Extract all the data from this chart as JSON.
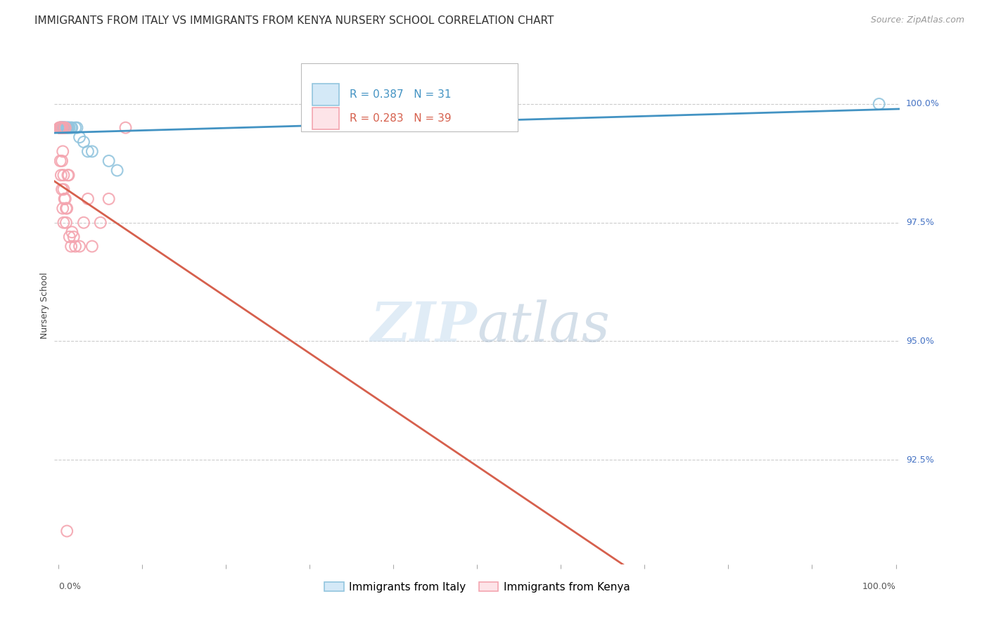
{
  "title": "IMMIGRANTS FROM ITALY VS IMMIGRANTS FROM KENYA NURSERY SCHOOL CORRELATION CHART",
  "source": "Source: ZipAtlas.com",
  "ylabel": "Nursery School",
  "legend_italy": "Immigrants from Italy",
  "legend_kenya": "Immigrants from Kenya",
  "italy_R": 0.387,
  "italy_N": 31,
  "kenya_R": 0.283,
  "kenya_N": 39,
  "italy_color": "#92c5de",
  "kenya_color": "#f4a5b0",
  "italy_line_color": "#4393c3",
  "kenya_line_color": "#d6604d",
  "ytick_labels": [
    "92.5%",
    "95.0%",
    "97.5%",
    "100.0%"
  ],
  "ytick_values": [
    92.5,
    95.0,
    97.5,
    100.0
  ],
  "ymin": 90.3,
  "ymax": 101.2,
  "xmin": -0.5,
  "xmax": 100.5,
  "background": "#ffffff",
  "grid_color": "#cccccc",
  "italy_x": [
    0.2,
    0.3,
    0.3,
    0.3,
    0.4,
    0.4,
    0.4,
    0.5,
    0.5,
    0.6,
    0.6,
    0.7,
    0.7,
    0.8,
    0.8,
    1.0,
    1.0,
    1.1,
    1.2,
    1.3,
    1.5,
    1.6,
    2.0,
    2.2,
    2.5,
    3.0,
    3.5,
    4.0,
    6.0,
    7.0,
    98.0
  ],
  "italy_y": [
    99.5,
    99.5,
    99.5,
    99.5,
    99.5,
    99.5,
    99.5,
    99.5,
    99.5,
    99.5,
    99.5,
    99.5,
    99.5,
    99.5,
    99.5,
    99.5,
    99.5,
    99.5,
    99.5,
    99.5,
    99.5,
    99.5,
    99.5,
    99.5,
    99.3,
    99.2,
    99.0,
    99.0,
    98.8,
    98.6,
    100.0
  ],
  "kenya_x": [
    0.1,
    0.1,
    0.2,
    0.2,
    0.2,
    0.3,
    0.3,
    0.3,
    0.4,
    0.4,
    0.4,
    0.5,
    0.5,
    0.5,
    0.6,
    0.6,
    0.6,
    0.7,
    0.7,
    0.8,
    0.8,
    0.9,
    0.9,
    1.0,
    1.1,
    1.2,
    1.3,
    1.5,
    1.6,
    1.8,
    2.0,
    2.5,
    3.0,
    3.5,
    4.0,
    5.0,
    6.0,
    8.0,
    1.0
  ],
  "kenya_y": [
    99.5,
    99.5,
    99.5,
    99.5,
    98.8,
    99.5,
    99.5,
    98.5,
    99.5,
    98.8,
    98.2,
    99.5,
    99.0,
    97.8,
    98.5,
    98.2,
    97.5,
    99.5,
    98.0,
    99.5,
    98.0,
    97.8,
    97.5,
    97.8,
    98.5,
    98.5,
    97.2,
    97.0,
    97.3,
    97.2,
    97.0,
    97.0,
    97.5,
    98.0,
    97.0,
    97.5,
    98.0,
    99.5,
    91.0
  ],
  "title_fontsize": 11,
  "axis_label_fontsize": 9,
  "tick_fontsize": 9,
  "legend_fontsize": 11,
  "source_fontsize": 9,
  "watermark_fontsize": 56
}
